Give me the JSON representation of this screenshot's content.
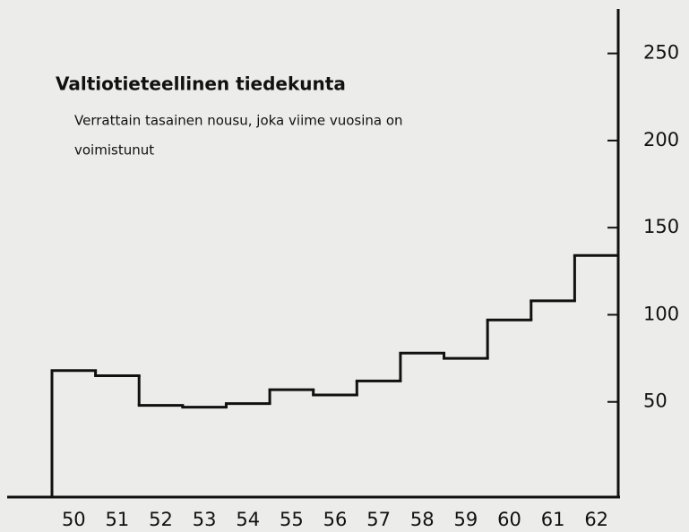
{
  "chart_data": {
    "type": "step",
    "title": "Valtiotieteellinen tiedekunta",
    "subtitle": [
      "Verrattain tasainen nousu, joka viime vuosina on",
      "voimistunut"
    ],
    "categories": [
      "50",
      "51",
      "52",
      "53",
      "54",
      "55",
      "56",
      "57",
      "58",
      "59",
      "60",
      "61",
      "62"
    ],
    "values": [
      68,
      65,
      48,
      47,
      49,
      57,
      54,
      62,
      78,
      75,
      97,
      108,
      134
    ],
    "color": "#111111",
    "ylim": [
      0,
      275
    ],
    "yticks": [
      50,
      100,
      150,
      200,
      250
    ],
    "grid": false
  }
}
